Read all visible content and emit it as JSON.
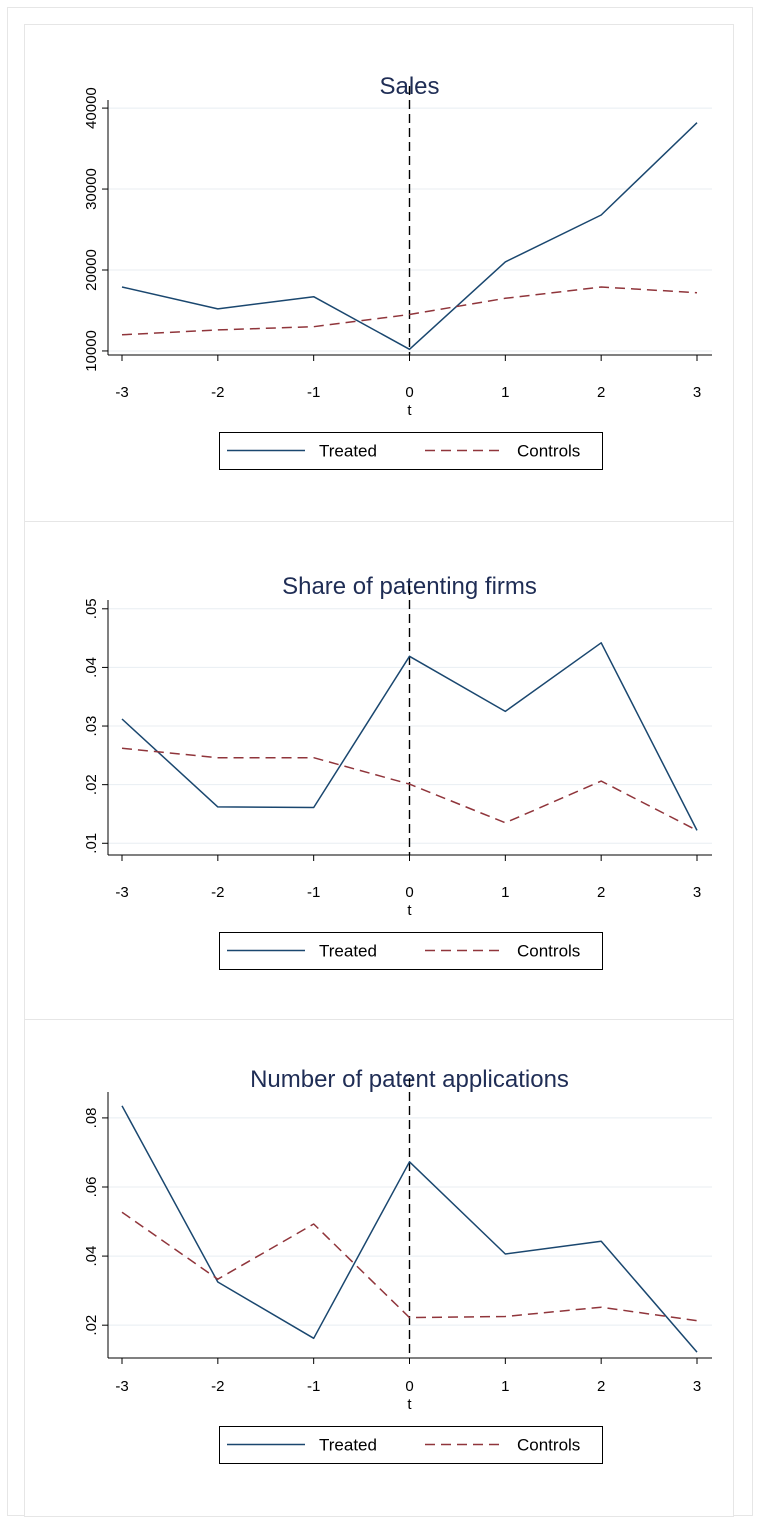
{
  "colors": {
    "treated": "#1a476f",
    "controls": "#90353b"
  },
  "chart_data": [
    {
      "type": "line",
      "title": "Sales",
      "xlabel": "t",
      "ylabel": "",
      "x": [
        -3,
        -2,
        -1,
        0,
        1,
        2,
        3
      ],
      "xticks": [
        "-3",
        "-2",
        "-1",
        "0",
        "1",
        "2",
        "3"
      ],
      "ylim": [
        9500,
        41000
      ],
      "yticks": [
        10000,
        20000,
        30000,
        40000
      ],
      "ytick_labels": [
        "10000",
        "20000",
        "30000",
        "40000"
      ],
      "vline_x": 0,
      "grid": true,
      "legend_position": "bottom",
      "series": [
        {
          "name": "Treated",
          "style": "solid",
          "values": [
            17900,
            15200,
            16700,
            10200,
            21000,
            26800,
            38200
          ]
        },
        {
          "name": "Controls",
          "style": "dashed",
          "values": [
            12000,
            12600,
            13000,
            14500,
            16500,
            17900,
            17200
          ]
        }
      ]
    },
    {
      "type": "line",
      "title": "Share of patenting firms",
      "xlabel": "t",
      "ylabel": "",
      "x": [
        -3,
        -2,
        -1,
        0,
        1,
        2,
        3
      ],
      "xticks": [
        "-3",
        "-2",
        "-1",
        "0",
        "1",
        "2",
        "3"
      ],
      "ylim": [
        0.008,
        0.0515
      ],
      "yticks": [
        0.01,
        0.02,
        0.03,
        0.04,
        0.05
      ],
      "ytick_labels": [
        ".01",
        ".02",
        ".03",
        ".04",
        ".05"
      ],
      "vline_x": 0,
      "grid": true,
      "legend_position": "bottom",
      "series": [
        {
          "name": "Treated",
          "style": "solid",
          "values": [
            0.0312,
            0.0162,
            0.0161,
            0.0419,
            0.0325,
            0.0442,
            0.0122
          ]
        },
        {
          "name": "Controls",
          "style": "dashed",
          "values": [
            0.0262,
            0.0246,
            0.0246,
            0.0201,
            0.0135,
            0.0206,
            0.0122
          ]
        }
      ]
    },
    {
      "type": "line",
      "title": "Number of patent applications",
      "xlabel": "t",
      "ylabel": "",
      "x": [
        -3,
        -2,
        -1,
        0,
        1,
        2,
        3
      ],
      "xticks": [
        "-3",
        "-2",
        "-1",
        "0",
        "1",
        "2",
        "3"
      ],
      "ylim": [
        0.0105,
        0.0875
      ],
      "yticks": [
        0.02,
        0.04,
        0.06,
        0.08
      ],
      "ytick_labels": [
        ".02",
        ".04",
        ".06",
        ".08"
      ],
      "vline_x": 0,
      "grid": true,
      "legend_position": "bottom",
      "series": [
        {
          "name": "Treated",
          "style": "solid",
          "values": [
            0.0835,
            0.0325,
            0.0162,
            0.0673,
            0.0406,
            0.0443,
            0.0122
          ]
        },
        {
          "name": "Controls",
          "style": "dashed",
          "values": [
            0.0527,
            0.0333,
            0.0493,
            0.0222,
            0.0225,
            0.0252,
            0.0213
          ]
        }
      ]
    }
  ]
}
